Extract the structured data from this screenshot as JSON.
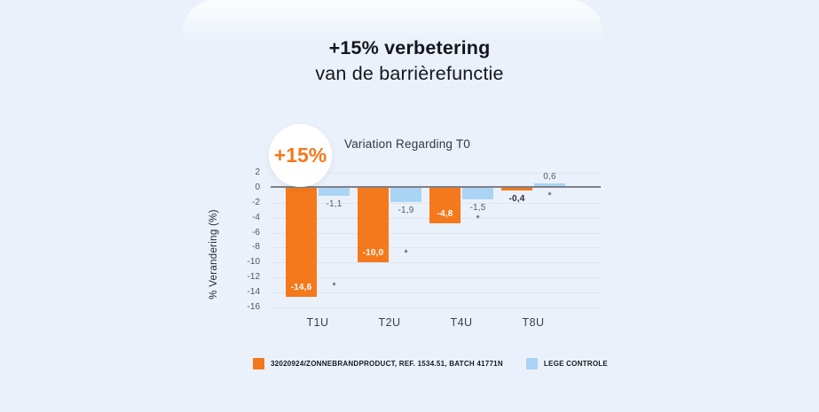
{
  "page": {
    "background_color": "#ebf1fa",
    "title_line1": "+15% verbetering",
    "title_line2": "van de barrièrefunctie"
  },
  "badge": {
    "text": "+15%",
    "color": "#f4791c"
  },
  "chart_data": {
    "type": "bar",
    "title": "Variation Regarding T0",
    "categories": [
      "T1U",
      "T2U",
      "T4U",
      "T8U"
    ],
    "series": [
      {
        "name": "32020924/ZONNEBRANDPRODUCT, REF. 1534.51, BATCH 41771N",
        "color": "#f4791c",
        "values": [
          -14.6,
          -10.0,
          -4.8,
          -0.4
        ],
        "labels": [
          "-14,6",
          "-10,0",
          "-4,8",
          "-0,4"
        ]
      },
      {
        "name": "LEGE CONTROLE",
        "color": "#aad4f4",
        "values": [
          -1.1,
          -1.9,
          -1.5,
          0.6
        ],
        "labels": [
          "-1,1",
          "-1,9",
          "-1,5",
          "0,6"
        ]
      }
    ],
    "significance_marker": "*",
    "significance_levels": [
      -13.2,
      -8.8,
      -4.1,
      -1.1
    ],
    "ylabel": "% Verandering (%)",
    "ylim": [
      -16,
      2
    ],
    "ytick_step": 2,
    "grid": true,
    "legend_position": "bottom"
  }
}
